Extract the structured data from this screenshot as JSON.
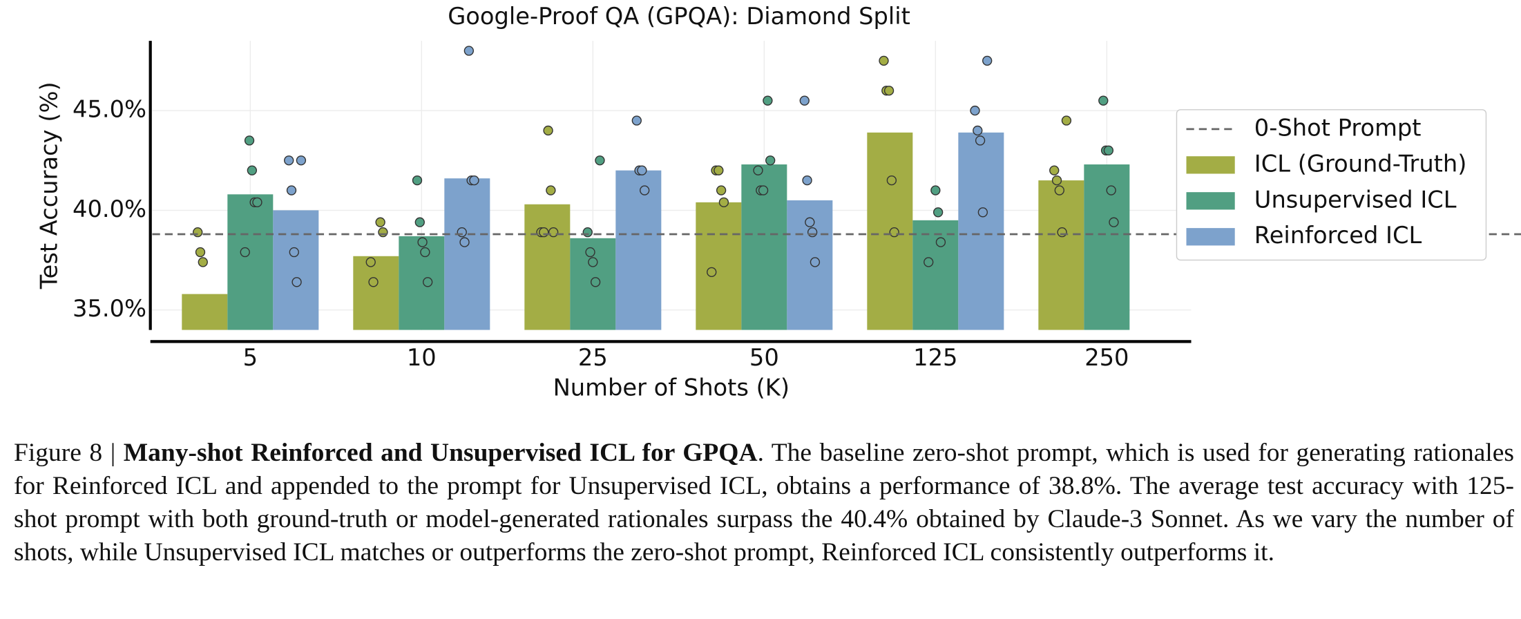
{
  "chart_data": {
    "type": "bar",
    "title": "Google-Proof QA (GPQA): Diamond Split",
    "xlabel": "Number of Shots (K)",
    "ylabel": "Test Accuracy (%)",
    "categories": [
      "5",
      "10",
      "25",
      "50",
      "125",
      "250"
    ],
    "ylim": [
      34,
      48.5
    ],
    "yticks": [
      {
        "value": 35,
        "label": "35.0%"
      },
      {
        "value": 40,
        "label": "40.0%"
      },
      {
        "value": 45,
        "label": "45.0%"
      }
    ],
    "grid": true,
    "legend": "right",
    "baseline": {
      "name": "0-Shot Prompt",
      "value": 38.8,
      "color": "#666666"
    },
    "series": [
      {
        "name": "ICL (Ground-Truth)",
        "color": "#a3ad45",
        "values": [
          35.8,
          37.7,
          40.3,
          40.4,
          43.9,
          41.5
        ],
        "points": [
          [
            38.9,
            37.9,
            37.4
          ],
          [
            39.4,
            38.9,
            37.4,
            36.4
          ],
          [
            44.0,
            41.0,
            38.9,
            38.9,
            38.9
          ],
          [
            42.0,
            42.0,
            41.0,
            40.4,
            36.9
          ],
          [
            47.5,
            46.0,
            46.0,
            41.5,
            38.9
          ],
          [
            44.5,
            42.0,
            41.5,
            41.0,
            38.9
          ]
        ]
      },
      {
        "name": "Unsupervised ICL",
        "color": "#519f82",
        "values": [
          40.8,
          38.7,
          38.6,
          42.3,
          39.5,
          42.3
        ],
        "points": [
          [
            43.5,
            42.0,
            40.4,
            40.4,
            37.9
          ],
          [
            41.5,
            39.4,
            38.4,
            37.9,
            36.4
          ],
          [
            42.5,
            38.9,
            37.9,
            37.4,
            36.4
          ],
          [
            45.5,
            42.5,
            42.0,
            41.0,
            41.0
          ],
          [
            41.0,
            39.9,
            38.4,
            37.4
          ],
          [
            45.5,
            43.0,
            43.0,
            41.0,
            39.4
          ]
        ]
      },
      {
        "name": "Reinforced ICL",
        "color": "#7da2cc",
        "values": [
          40.0,
          41.6,
          42.0,
          40.5,
          43.9,
          null
        ],
        "points": [
          [
            42.5,
            42.5,
            41.0,
            37.9,
            36.4
          ],
          [
            48.0,
            41.5,
            41.5,
            38.9,
            38.4
          ],
          [
            44.5,
            42.0,
            42.0,
            41.0
          ],
          [
            45.5,
            41.5,
            39.4,
            38.9,
            37.4
          ],
          [
            47.5,
            45.0,
            44.0,
            43.5,
            39.9
          ],
          []
        ]
      }
    ]
  },
  "caption": {
    "label": "Figure 8 |",
    "title": "Many-shot Reinforced and Unsupervised ICL for GPQA",
    "text": ". The baseline zero-shot prompt, which is used for generating rationales for Reinforced ICL and appended to the prompt for Unsupervised ICL, obtains a performance of 38.8%. The average test accuracy with 125-shot prompt with both ground-truth or model-generated rationales surpass the 40.4% obtained by Claude-3 Sonnet. As we vary the number of shots, while Unsupervised ICL matches or outperforms the zero-shot prompt, Reinforced ICL consistently outperforms it."
  }
}
